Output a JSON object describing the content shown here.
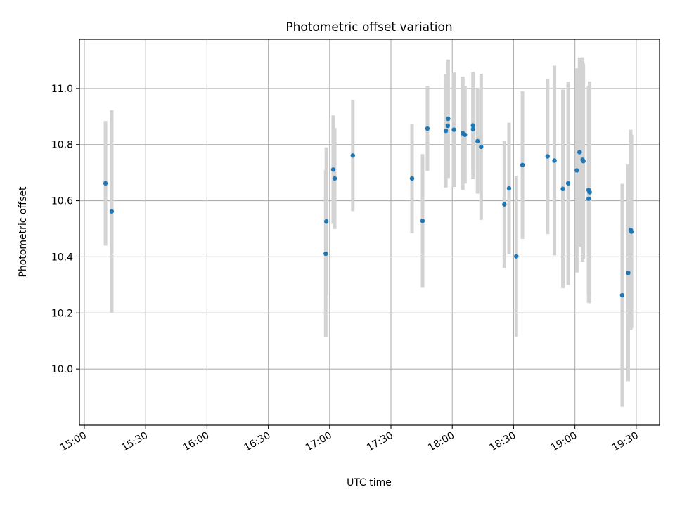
{
  "chart_data": {
    "type": "scatter",
    "title": "Photometric offset variation",
    "xlabel": "UTC time",
    "ylabel": "Photometric offset",
    "x_is_time": true,
    "xlim": [
      "14:57:36",
      "19:41:24"
    ],
    "ylim": [
      9.8,
      11.175
    ],
    "x_ticks": [
      "15:00",
      "15:30",
      "16:00",
      "16:30",
      "17:00",
      "17:30",
      "18:00",
      "18:30",
      "19:00",
      "19:30"
    ],
    "y_ticks": [
      "10.0",
      "10.2",
      "10.4",
      "10.6",
      "10.8",
      "11.0"
    ],
    "grid": true,
    "errorbar_color": "#d3d3d3",
    "point_color": "#1f77b4",
    "points": [
      {
        "t": "15:10:21",
        "y": 10.662,
        "err": 0.222
      },
      {
        "t": "15:13:24",
        "y": 10.562,
        "err": 0.36
      },
      {
        "t": "16:58:06",
        "y": 10.411,
        "err": 0.298
      },
      {
        "t": "16:58:24",
        "y": 10.526,
        "err": 0.264
      },
      {
        "t": "17:01:46",
        "y": 10.711,
        "err": 0.193
      },
      {
        "t": "17:02:29",
        "y": 10.679,
        "err": 0.18
      },
      {
        "t": "17:11:21",
        "y": 10.761,
        "err": 0.198
      },
      {
        "t": "17:40:19",
        "y": 10.679,
        "err": 0.195
      },
      {
        "t": "17:45:28",
        "y": 10.528,
        "err": 0.238
      },
      {
        "t": "17:47:51",
        "y": 10.857,
        "err": 0.151
      },
      {
        "t": "17:56:51",
        "y": 10.849,
        "err": 0.202
      },
      {
        "t": "17:57:49",
        "y": 10.867,
        "err": 0.184
      },
      {
        "t": "17:57:59",
        "y": 10.892,
        "err": 0.211
      },
      {
        "t": "18:00:47",
        "y": 10.853,
        "err": 0.204
      },
      {
        "t": "18:05:10",
        "y": 10.84,
        "err": 0.202
      },
      {
        "t": "18:06:12",
        "y": 10.835,
        "err": 0.174
      },
      {
        "t": "18:10:09",
        "y": 10.868,
        "err": 0.191
      },
      {
        "t": "18:10:09",
        "y": 10.855,
        "err": 0.147
      },
      {
        "t": "18:12:23",
        "y": 10.812,
        "err": 0.187
      },
      {
        "t": "18:14:08",
        "y": 10.792,
        "err": 0.26
      },
      {
        "t": "18:25:29",
        "y": 10.587,
        "err": 0.227
      },
      {
        "t": "18:27:46",
        "y": 10.644,
        "err": 0.234
      },
      {
        "t": "18:31:19",
        "y": 10.402,
        "err": 0.287
      },
      {
        "t": "18:34:21",
        "y": 10.727,
        "err": 0.263
      },
      {
        "t": "18:46:38",
        "y": 10.758,
        "err": 0.277
      },
      {
        "t": "18:50:00",
        "y": 10.743,
        "err": 0.338
      },
      {
        "t": "18:54:07",
        "y": 10.642,
        "err": 0.354
      },
      {
        "t": "18:56:42",
        "y": 10.662,
        "err": 0.362
      },
      {
        "t": "19:00:56",
        "y": 10.708,
        "err": 0.364
      },
      {
        "t": "19:02:16",
        "y": 10.773,
        "err": 0.337
      },
      {
        "t": "19:03:46",
        "y": 10.746,
        "err": 0.365
      },
      {
        "t": "19:04:08",
        "y": 10.741,
        "err": 0.348
      },
      {
        "t": "19:06:40",
        "y": 10.638,
        "err": 0.371
      },
      {
        "t": "19:06:44",
        "y": 10.607,
        "err": 0.371
      },
      {
        "t": "19:07:12",
        "y": 10.63,
        "err": 0.395
      },
      {
        "t": "19:23:09",
        "y": 10.263,
        "err": 0.397
      },
      {
        "t": "19:26:05",
        "y": 10.343,
        "err": 0.386
      },
      {
        "t": "19:27:18",
        "y": 10.496,
        "err": 0.357
      },
      {
        "t": "19:27:40",
        "y": 10.49,
        "err": 0.345
      }
    ]
  }
}
